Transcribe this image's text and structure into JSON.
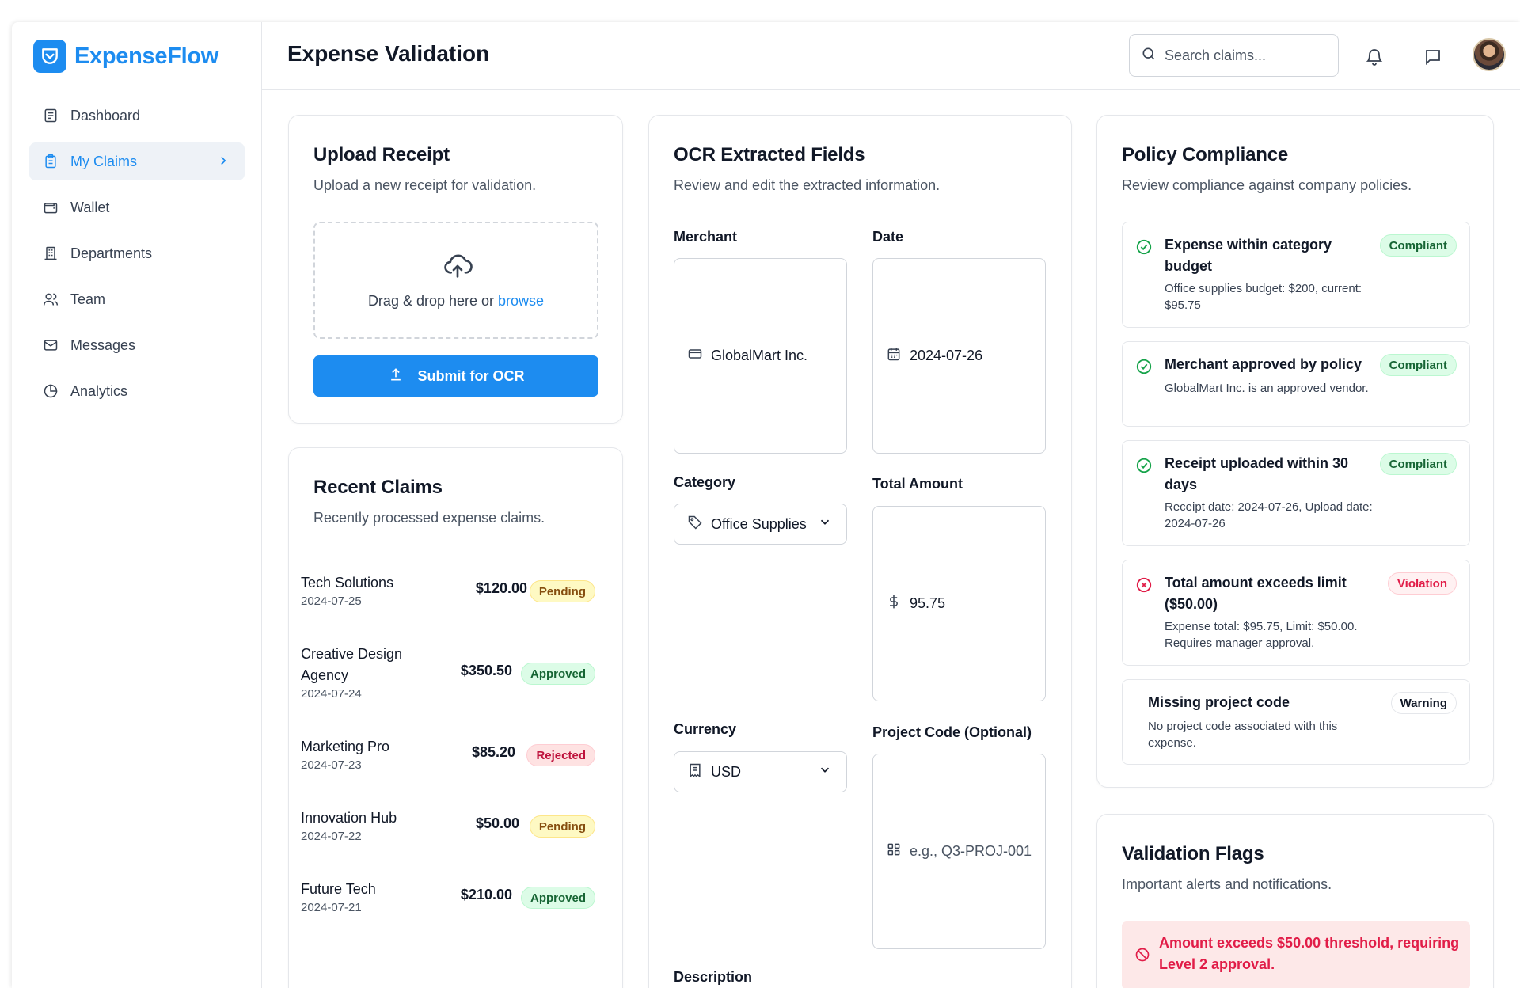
{
  "app": {
    "name": "ExpenseFlow"
  },
  "sidebar": {
    "items": [
      {
        "label": "Dashboard",
        "icon": "dashboard-icon"
      },
      {
        "label": "My Claims",
        "icon": "clipboard-icon",
        "active": true
      },
      {
        "label": "Wallet",
        "icon": "wallet-icon"
      },
      {
        "label": "Departments",
        "icon": "building-icon"
      },
      {
        "label": "Team",
        "icon": "users-icon"
      },
      {
        "label": "Messages",
        "icon": "mail-icon"
      },
      {
        "label": "Analytics",
        "icon": "pie-chart-icon"
      }
    ]
  },
  "header": {
    "title": "Expense Validation",
    "search_placeholder": "Search claims..."
  },
  "upload": {
    "title": "Upload Receipt",
    "subtitle": "Upload a new receipt for validation.",
    "drop_text": "Drag & drop here or ",
    "browse_label": "browse",
    "submit_label": "Submit for OCR"
  },
  "recent": {
    "title": "Recent Claims",
    "subtitle": "Recently processed expense claims.",
    "claims": [
      {
        "merchant": "Tech Solutions",
        "date": "2024-07-25",
        "amount": "$120.00",
        "status": "Pending"
      },
      {
        "merchant": "Creative Design Agency",
        "date": "2024-07-24",
        "amount": "$350.50",
        "status": "Approved"
      },
      {
        "merchant": "Marketing Pro",
        "date": "2024-07-23",
        "amount": "$85.20",
        "status": "Rejected"
      },
      {
        "merchant": "Innovation Hub",
        "date": "2024-07-22",
        "amount": "$50.00",
        "status": "Pending"
      },
      {
        "merchant": "Future Tech",
        "date": "2024-07-21",
        "amount": "$210.00",
        "status": "Approved"
      }
    ]
  },
  "ocr": {
    "title": "OCR Extracted Fields",
    "subtitle": "Review and edit the extracted information.",
    "merchant_label": "Merchant",
    "merchant_value": "GlobalMart Inc.",
    "date_label": "Date",
    "date_value": "2024-07-26",
    "category_label": "Category",
    "category_value": "Office Supplies",
    "total_label": "Total Amount",
    "total_value": "95.75",
    "currency_label": "Currency",
    "currency_value": "USD",
    "project_label": "Project Code (Optional)",
    "project_placeholder": "e.g., Q3-PROJ-001",
    "description_label": "Description"
  },
  "policy": {
    "title": "Policy Compliance",
    "subtitle": "Review compliance against company policies.",
    "items": [
      {
        "title": "Expense within category budget",
        "desc": "Office supplies budget: $200, current: $95.75",
        "status": "Compliant"
      },
      {
        "title": "Merchant approved by policy",
        "desc": "GlobalMart Inc. is an approved vendor.",
        "status": "Compliant"
      },
      {
        "title": "Receipt uploaded within 30 days",
        "desc": "Receipt date: 2024-07-26, Upload date: 2024-07-26",
        "status": "Compliant"
      },
      {
        "title": "Total amount exceeds limit ($50.00)",
        "desc": "Expense total: $95.75, Limit: $50.00. Requires manager approval.",
        "status": "Violation"
      },
      {
        "title": "Missing project code",
        "desc": "No project code associated with this expense.",
        "status": "Warning"
      }
    ]
  },
  "flags": {
    "title": "Validation Flags",
    "subtitle": "Important alerts and notifications.",
    "alert": "Amount exceeds $50.00 threshold, requiring Level 2 approval."
  },
  "colors": {
    "accent": "#1d8cf0",
    "success": "#166534",
    "danger": "#e11d48",
    "warning": "#854d0e"
  }
}
